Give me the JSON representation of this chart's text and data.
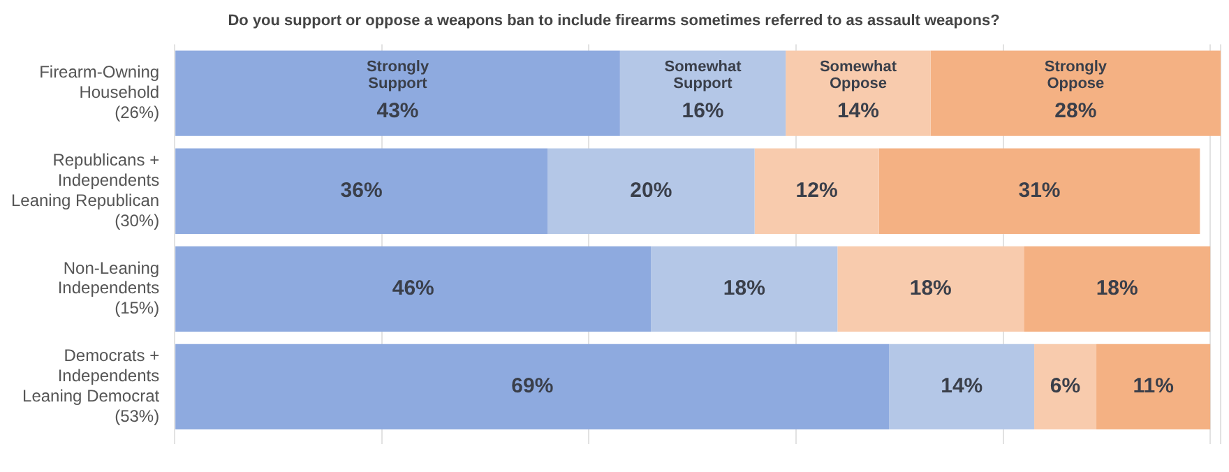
{
  "chart_data": {
    "type": "bar",
    "orientation": "horizontal",
    "stacked": true,
    "title": "Do you support or oppose a weapons ban to include firearms sometimes referred to as assault weapons?",
    "categories": [
      "Firearm-Owning\nHousehold\n(26%)",
      "Republicans +\nIndependents\nLeaning Republican\n(30%)",
      "Non-Leaning\nIndependents\n(15%)",
      "Democrats +\nIndependents\nLeaning Democrat\n(53%)"
    ],
    "series": [
      {
        "name": "Strongly Support",
        "color": "#8eaadf",
        "values": [
          43,
          36,
          46,
          69
        ],
        "value_labels": [
          "43%",
          "36%",
          "46%",
          "69%"
        ]
      },
      {
        "name": "Somewhat Support",
        "color": "#b4c7e7",
        "values": [
          16,
          20,
          18,
          14
        ],
        "value_labels": [
          "16%",
          "20%",
          "18%",
          "14%"
        ]
      },
      {
        "name": "Somewhat Oppose",
        "color": "#f8cbad",
        "values": [
          14,
          12,
          18,
          6
        ],
        "value_labels": [
          "14%",
          "12%",
          "18%",
          "6%"
        ]
      },
      {
        "name": "Strongly Oppose",
        "color": "#f4b183",
        "values": [
          28,
          31,
          18,
          11
        ],
        "value_labels": [
          "28%",
          "31%",
          "18%",
          "11%"
        ]
      }
    ],
    "grid": "x",
    "tick_labels": "y",
    "legend": false
  }
}
